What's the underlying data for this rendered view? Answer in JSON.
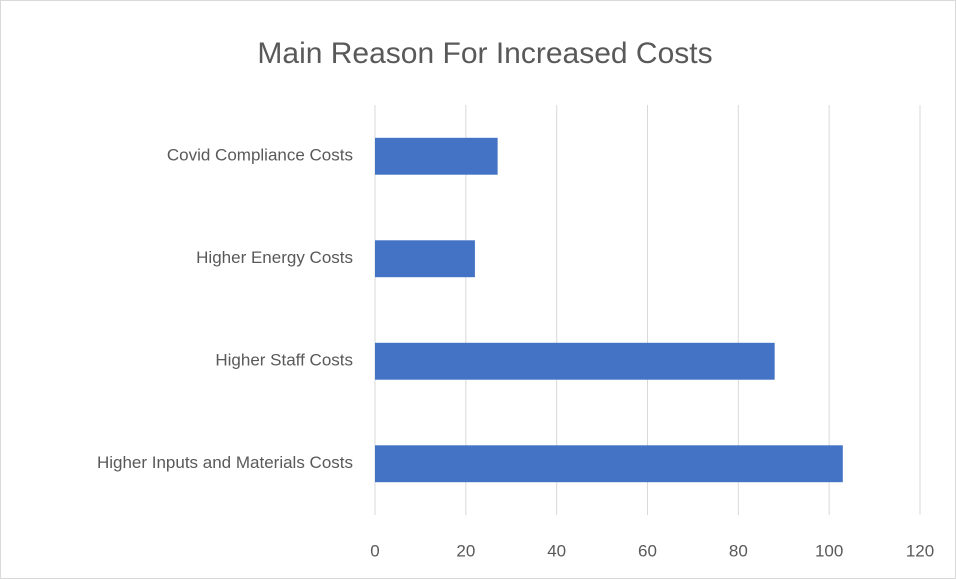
{
  "chart_data": {
    "type": "bar",
    "orientation": "horizontal",
    "title": "Main Reason For Increased Costs",
    "categories": [
      "Covid Compliance Costs",
      "Higher Energy Costs",
      "Higher Staff Costs",
      "Higher Inputs and Materials Costs"
    ],
    "values": [
      27,
      22,
      88,
      103
    ],
    "color": "#4472c4",
    "xlim": [
      0,
      120
    ],
    "xticks": [
      0,
      20,
      40,
      60,
      80,
      100,
      120
    ],
    "grid": true
  }
}
